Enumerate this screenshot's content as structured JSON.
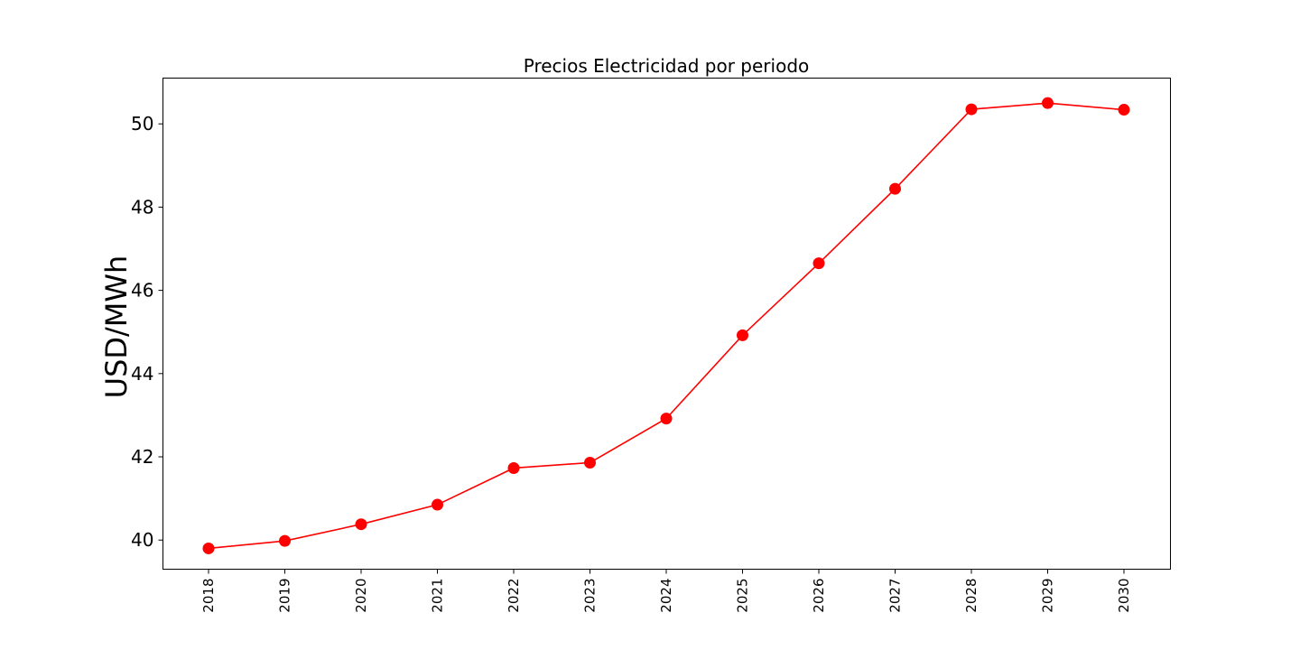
{
  "chart_data": {
    "type": "line",
    "title": "Precios Electricidad por periodo",
    "xlabel": "",
    "ylabel": "USD/MWh",
    "categories": [
      "2018",
      "2019",
      "2020",
      "2021",
      "2022",
      "2023",
      "2024",
      "2025",
      "2026",
      "2027",
      "2028",
      "2029",
      "2030"
    ],
    "series": [
      {
        "values": [
          39.8,
          39.98,
          40.38,
          40.85,
          41.73,
          41.86,
          42.92,
          44.92,
          46.65,
          48.44,
          50.35,
          50.5,
          50.34
        ],
        "color": "#ff0000",
        "marker": "circle"
      }
    ],
    "ylim": [
      39.3,
      51.1
    ],
    "yticks": [
      "40",
      "42",
      "44",
      "46",
      "48",
      "50"
    ],
    "x_tick_rotation": "vertical",
    "grid": false,
    "legend": "none"
  }
}
